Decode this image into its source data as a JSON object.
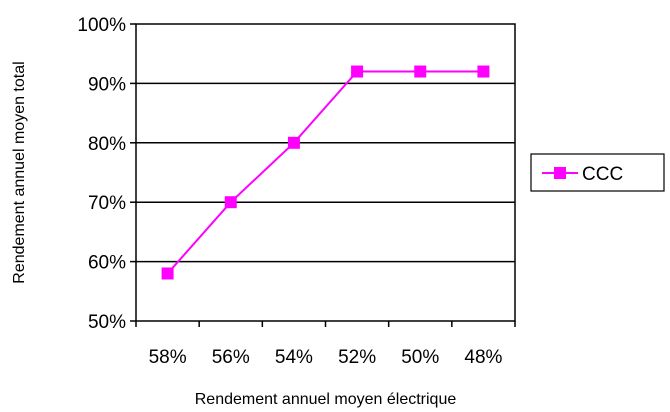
{
  "chart_data": {
    "type": "line",
    "categories": [
      "58%",
      "56%",
      "54%",
      "52%",
      "50%",
      "48%"
    ],
    "series": [
      {
        "name": "CCC",
        "values": [
          58,
          70,
          80,
          92,
          92,
          92
        ],
        "color": "#ff00ff"
      }
    ],
    "ylim": [
      50,
      100
    ],
    "yticks": [
      50,
      60,
      70,
      80,
      90,
      100
    ],
    "ytick_labels": [
      "50%",
      "60%",
      "70%",
      "80%",
      "90%",
      "100%"
    ],
    "xlabel": "Rendement annuel moyen électrique",
    "ylabel": "Rendement annuel moyen total",
    "grid": true,
    "legend": "right",
    "legend_label": "CCC"
  }
}
